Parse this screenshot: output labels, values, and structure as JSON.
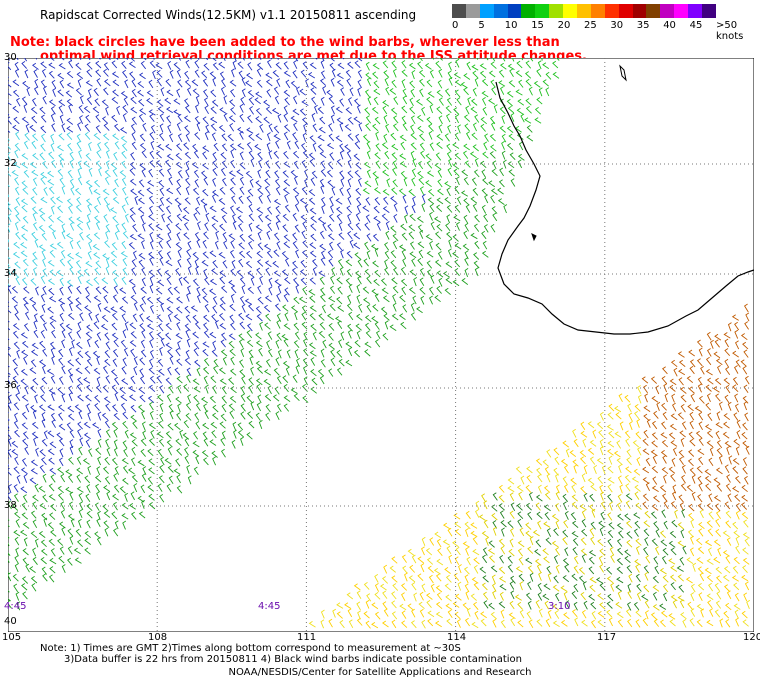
{
  "title": "Rapidscat Corrected Winds(12.5KM) v1.1 20150811 ascending",
  "notes": [
    "Note: black circles have been added to the wind barbs, wherever less than",
    "optimal wind retrieval conditions are met due to the ISS attitude changes."
  ],
  "colorbar": {
    "labels": [
      "0",
      "5",
      "10",
      "15",
      "20",
      "25",
      "30",
      "35",
      "40",
      "45",
      ">50 knots"
    ],
    "colors": [
      "#4d4d4d",
      "#9a9a9a",
      "#00a0ff",
      "#0070e0",
      "#0040c0",
      "#00b000",
      "#10d010",
      "#a0e000",
      "#ffff00",
      "#ffc000",
      "#ff8000",
      "#ff3000",
      "#e00000",
      "#a00000",
      "#804000",
      "#c000c0",
      "#ff00ff",
      "#8000ff",
      "#400080"
    ]
  },
  "map": {
    "lat_labels": [
      "30",
      "32",
      "34",
      "36",
      "38",
      "40"
    ],
    "lon_labels": [
      "105",
      "108",
      "111",
      "114",
      "117",
      "120"
    ],
    "time_labels": [
      "4:45",
      "4:45",
      "3:10"
    ],
    "lon_range": [
      105,
      120
    ],
    "lat_range": [
      -30,
      -40.5
    ],
    "grid": true
  },
  "footnotes": [
    "Note: 1) Times are GMT 2)Times along bottom correspond to measurement at ~30S",
    "3)Data buffer is 22 hrs from 20150811 4) Black wind barbs indicate possible contamination"
  ],
  "credit": "NOAA/NESDIS/Center for Satellite Applications and Research"
}
